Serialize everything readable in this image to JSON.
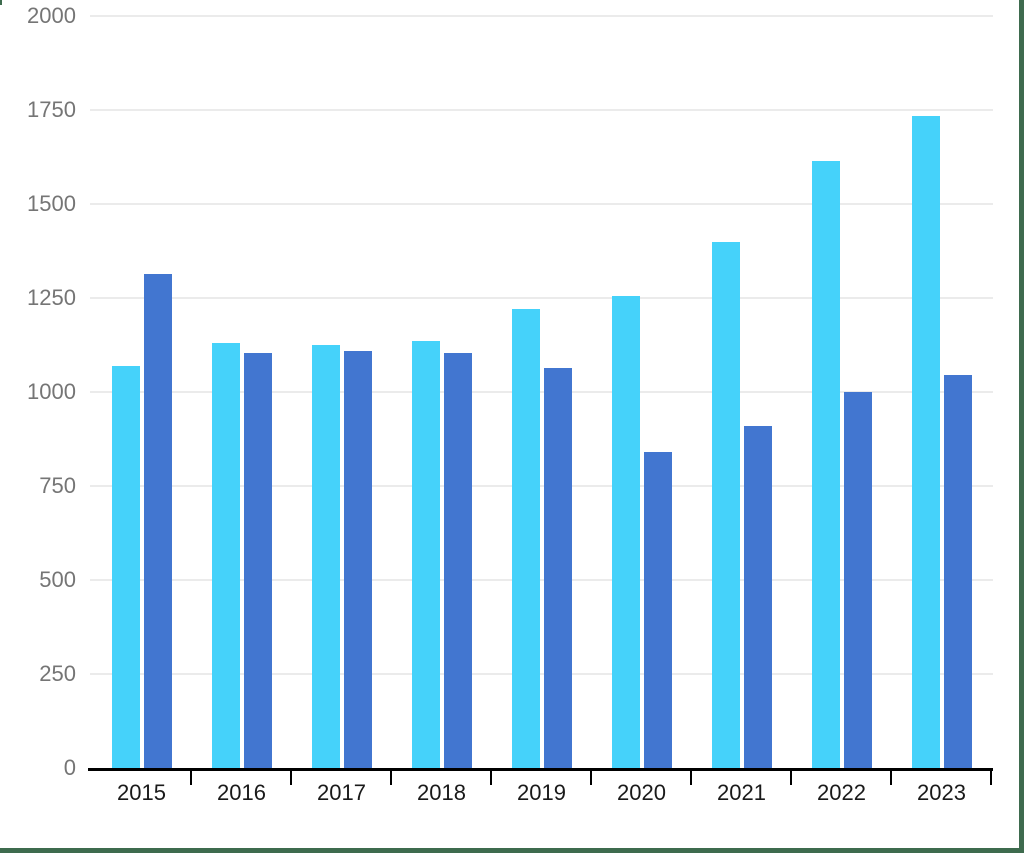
{
  "page": {
    "background_color": "#ffffff",
    "frame_border_color": "#3e6b4e"
  },
  "chart_data": {
    "type": "bar",
    "title": "",
    "xlabel": "",
    "ylabel": "",
    "categories": [
      "2015",
      "2016",
      "2017",
      "2018",
      "2019",
      "2020",
      "2021",
      "2022",
      "2023"
    ],
    "series": [
      {
        "name": "light-blue-series",
        "color": "#45d2fa",
        "values": [
          1070,
          1130,
          1125,
          1135,
          1220,
          1255,
          1400,
          1615,
          1735
        ]
      },
      {
        "name": "dark-blue-series",
        "color": "#4276d0",
        "values": [
          1315,
          1105,
          1110,
          1105,
          1065,
          840,
          910,
          1000,
          1045
        ]
      }
    ],
    "ylim": [
      0,
      2000
    ],
    "yticks": [
      0,
      250,
      500,
      750,
      1000,
      1250,
      1500,
      1750,
      2000
    ],
    "grid": true,
    "legend_position": "none",
    "colors": {
      "gridline": "#ebebeb",
      "axis_line": "#000000",
      "axis_tick": "#000000",
      "y_tick_label": "#757575",
      "x_tick_label": "#1a1a1a"
    }
  }
}
